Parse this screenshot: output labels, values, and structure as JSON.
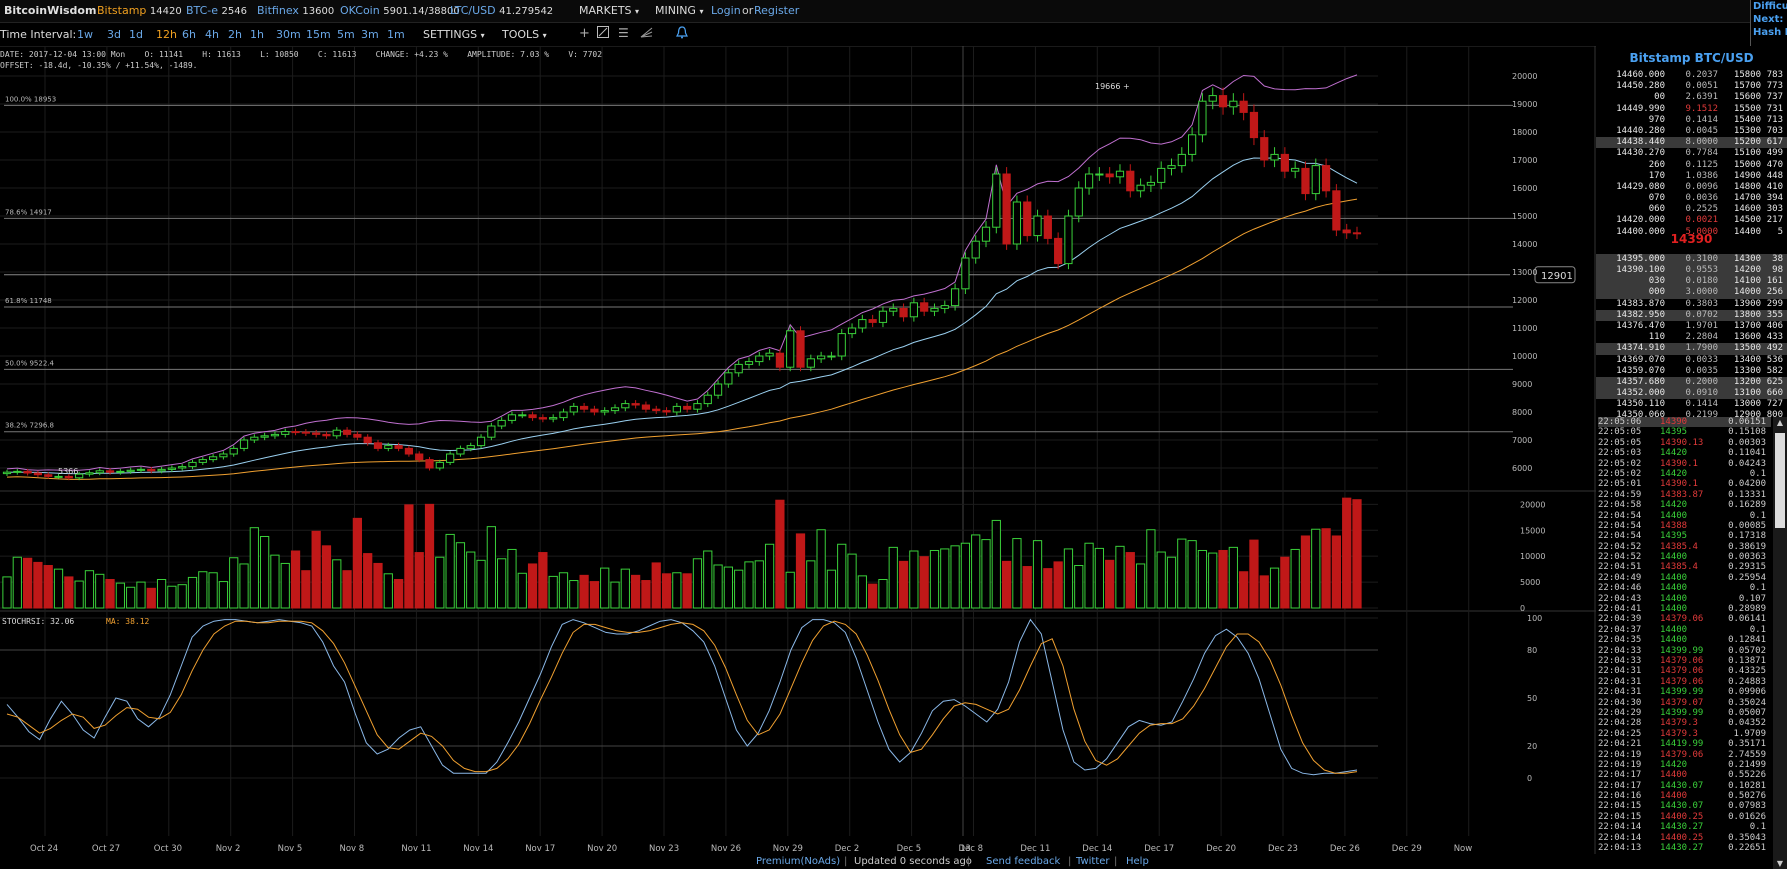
{
  "topbar": {
    "brand": "BitcoinWisdom",
    "exchanges": [
      {
        "name": "Bitstamp",
        "price": "14420",
        "active": true
      },
      {
        "name": "BTC-e",
        "price": "2546"
      },
      {
        "name": "Bitfinex",
        "price": "13600"
      },
      {
        "name": "OKCoin",
        "price": "5901.14/38800"
      },
      {
        "name": "LTC/USD",
        "price": "41.279542"
      }
    ],
    "markets_label": "MARKETS",
    "mining_label": "MINING",
    "login_label": "Login",
    "or_label": "or",
    "register_label": "Register",
    "side_info": [
      "Difficu",
      "Next:",
      "Hash R"
    ]
  },
  "toolbar": {
    "time_interval_label": "Time Interval:",
    "intervals": [
      "1w",
      "3d",
      "1d",
      "12h",
      "6h",
      "4h",
      "2h",
      "1h",
      "30m",
      "15m",
      "5m",
      "3m",
      "1m"
    ],
    "selected_interval": "12h",
    "settings_label": "SETTINGS",
    "tools_label": "TOOLS",
    "tool_icons": [
      "crosshair-icon",
      "line-draw-icon",
      "fib-icon",
      "fan-icon",
      "alert-bell-icon"
    ]
  },
  "ohlc": {
    "line1": "DATE: 2017-12-04 13:00 Mon    O: 11141    H: 11613    L: 10850    C: 11613    CHANGE: +4.23 %    AMPLITUDE: 7.03 %    V: 7702",
    "line2": "OFFSET: -18.4d, -10.35% / +11.54%, -1489."
  },
  "chart_data": [
    {
      "type": "candlestick",
      "pair": "BTC/USD",
      "y_axis": {
        "min": 5000,
        "max": 20500,
        "ticks": [
          6000,
          7000,
          8000,
          9000,
          10000,
          11000,
          12000,
          13000,
          14000,
          15000,
          16000,
          17000,
          18000,
          19000,
          20000
        ]
      },
      "x_labels": [
        "Oct 24",
        "Oct 27",
        "Oct 30",
        "Nov 2",
        "Nov 5",
        "Nov 8",
        "Nov 11",
        "Nov 14",
        "Nov 17",
        "Nov 20",
        "Nov 23",
        "Nov 26",
        "Nov 29",
        "Dec 2",
        "Dec 5",
        "Dec 8",
        "Dec 11",
        "Dec 14",
        "Dec 17",
        "Dec 20",
        "Dec 23",
        "Dec 26",
        "Dec 29",
        "Now"
      ],
      "crosshair_date_label": "13",
      "crosshair_price_label": "12901",
      "high_marker": "19666",
      "low_marker": "5366",
      "fib_levels": [
        {
          "label": "100.0% 18953",
          "value": 18953
        },
        {
          "label": "78.6% 14917",
          "value": 14917
        },
        {
          "label": "61.8% 11748",
          "value": 11748
        },
        {
          "label": "50.0% 9522.4",
          "value": 9522.4
        },
        {
          "label": "38.2% 7296.8",
          "value": 7296.8
        }
      ],
      "crosshair_value": 12901,
      "closes": [
        5850,
        5880,
        5820,
        5760,
        5700,
        5700,
        5650,
        5780,
        5830,
        5900,
        5850,
        5880,
        5920,
        5950,
        5900,
        5950,
        6000,
        6050,
        6200,
        6300,
        6400,
        6500,
        6700,
        7000,
        7100,
        7150,
        7200,
        7300,
        7280,
        7250,
        7200,
        7150,
        7350,
        7200,
        7100,
        6900,
        6700,
        6800,
        6700,
        6500,
        6300,
        6000,
        6200,
        6500,
        6700,
        6800,
        7100,
        7500,
        7700,
        7900,
        7900,
        7800,
        7750,
        7800,
        8000,
        8200,
        8100,
        8000,
        8050,
        8150,
        8300,
        8250,
        8100,
        8050,
        8000,
        8200,
        8100,
        8300,
        8600,
        9000,
        9400,
        9700,
        9800,
        10000,
        10100,
        9600,
        10900,
        9600,
        9900,
        10000,
        10000,
        10800,
        11000,
        11300,
        11200,
        11600,
        11700,
        11400,
        11900,
        11600,
        11700,
        11800,
        12400,
        13500,
        14100,
        14600,
        16500,
        14000,
        15500,
        14300,
        15000,
        14200,
        13300,
        15000,
        16000,
        16500,
        16500,
        16400,
        16600,
        15900,
        16100,
        16200,
        16700,
        16800,
        17200,
        17900,
        19100,
        19300,
        18900,
        19100,
        18700,
        17800,
        17000,
        17200,
        16600,
        16700,
        15800,
        16800,
        15900,
        14500,
        14400,
        14390
      ],
      "volume_axis": {
        "max": 22000,
        "ticks": [
          0,
          5000,
          10000,
          15000,
          20000
        ]
      },
      "volumes": [
        6000,
        9800,
        9600,
        8800,
        8200,
        7500,
        6000,
        5200,
        7200,
        6500,
        5500,
        4800,
        4000,
        5000,
        3800,
        5500,
        4200,
        4500,
        5900,
        7000,
        6800,
        5100,
        9700,
        8500,
        15500,
        13800,
        10200,
        8600,
        11000,
        7200,
        14800,
        12000,
        9300,
        7200,
        17300,
        10500,
        8600,
        6600,
        5500,
        19900,
        10700,
        20000,
        9800,
        14200,
        12600,
        10800,
        9200,
        15700,
        9500,
        11300,
        6700,
        8500,
        10700,
        6100,
        6800,
        5300,
        6300,
        5100,
        7700,
        5000,
        7500,
        6300,
        5300,
        8700,
        6600,
        6800,
        6600,
        9500,
        11000,
        8300,
        7900,
        7300,
        8900,
        9100,
        12300,
        20800,
        6900,
        14300,
        9100,
        15100,
        7300,
        12300,
        10400,
        6200,
        4600,
        5500,
        11700,
        9000,
        11000,
        9900,
        11100,
        11400,
        12000,
        12500,
        14100,
        13200,
        16900,
        9000,
        13400,
        8000,
        13000,
        7600,
        8900,
        11400,
        8200,
        12500,
        11500,
        9200,
        11900,
        10700,
        8500,
        15100,
        10800,
        9800,
        13300,
        13000,
        11100,
        10600,
        11100,
        11700,
        7000,
        13100,
        6200,
        7700,
        9800,
        11300,
        13900,
        15200,
        15300,
        13900,
        21200,
        20900
      ],
      "stochrsi": {
        "label": "STOCHRSI: 32.06",
        "ma_label": "MA: 38.12",
        "ticks": [
          0,
          20,
          50,
          80,
          100
        ],
        "k": [
          46,
          38,
          29,
          24,
          37,
          48,
          40,
          30,
          25,
          38,
          50,
          48,
          37,
          32,
          38,
          52,
          70,
          88,
          95,
          98,
          99,
          99,
          98,
          97,
          98,
          99,
          98,
          97,
          95,
          85,
          70,
          60,
          40,
          22,
          15,
          18,
          25,
          30,
          32,
          20,
          8,
          3,
          3,
          3,
          3,
          10,
          22,
          35,
          50,
          65,
          82,
          96,
          99,
          97,
          94,
          91,
          90,
          90,
          92,
          95,
          98,
          99,
          97,
          92,
          85,
          70,
          50,
          30,
          20,
          28,
          42,
          60,
          80,
          94,
          99,
          99,
          97,
          91,
          75,
          55,
          35,
          18,
          10,
          16,
          28,
          42,
          48,
          49,
          45,
          40,
          35,
          43,
          60,
          85,
          99,
          90,
          60,
          30,
          10,
          5,
          6,
          12,
          22,
          32,
          36,
          34,
          33,
          35,
          48,
          62,
          78,
          89,
          93,
          88,
          78,
          62,
          40,
          18,
          6,
          3,
          2,
          3,
          3,
          4,
          5
        ],
        "d": [
          40,
          38,
          33,
          28,
          31,
          36,
          40,
          38,
          31,
          33,
          39,
          44,
          43,
          38,
          37,
          41,
          52,
          67,
          80,
          90,
          95,
          98,
          98,
          97,
          97,
          98,
          98,
          98,
          97,
          92,
          84,
          72,
          57,
          42,
          27,
          19,
          18,
          23,
          28,
          26,
          20,
          11,
          6,
          4,
          4,
          6,
          12,
          21,
          34,
          49,
          63,
          78,
          91,
          96,
          96,
          94,
          92,
          91,
          91,
          92,
          94,
          96,
          97,
          96,
          92,
          83,
          69,
          52,
          36,
          27,
          30,
          40,
          56,
          72,
          86,
          95,
          98,
          96,
          90,
          77,
          61,
          43,
          27,
          16,
          18,
          27,
          37,
          45,
          47,
          46,
          43,
          40,
          43,
          55,
          70,
          84,
          87,
          70,
          43,
          23,
          11,
          8,
          12,
          20,
          28,
          33,
          34,
          34,
          37,
          45,
          56,
          69,
          82,
          90,
          90,
          85,
          74,
          58,
          39,
          22,
          11,
          5,
          3,
          3,
          4
        ]
      }
    }
  ],
  "orderbook": {
    "title": "Bitstamp BTC/USD",
    "asks": [
      [
        "14460.000",
        "0.2037",
        "15800",
        "783"
      ],
      [
        "14450.280",
        "0.0051",
        "15700",
        "773"
      ],
      [
        "00",
        "2.6391",
        "15600",
        "737"
      ],
      [
        "14449.990",
        "9.1512",
        "15500",
        "731"
      ],
      [
        "970",
        "0.1414",
        "15400",
        "713"
      ],
      [
        "14440.280",
        "0.0045",
        "15300",
        "703"
      ],
      [
        "14438.440",
        "8.0000",
        "15200",
        "617"
      ],
      [
        "14430.270",
        "0.7784",
        "15100",
        "499"
      ],
      [
        "260",
        "0.1125",
        "15000",
        "470"
      ],
      [
        "170",
        "1.0386",
        "14900",
        "448"
      ],
      [
        "14429.080",
        "0.0096",
        "14800",
        "410"
      ],
      [
        "070",
        "0.0036",
        "14700",
        "394"
      ],
      [
        "060",
        "0.2525",
        "14600",
        "303"
      ],
      [
        "14420.000",
        "0.0021",
        "14500",
        "217"
      ],
      [
        "14400.000",
        "5.0000",
        "14400",
        "5"
      ]
    ],
    "last_price": "14390",
    "bids": [
      [
        "14395.000",
        "0.3100",
        "14300",
        "38"
      ],
      [
        "14390.100",
        "0.9553",
        "14200",
        "98"
      ],
      [
        "030",
        "0.0180",
        "14100",
        "161"
      ],
      [
        "000",
        "3.0000",
        "14000",
        "256"
      ],
      [
        "14383.870",
        "0.3803",
        "13900",
        "299"
      ],
      [
        "14382.950",
        "0.0702",
        "13800",
        "355"
      ],
      [
        "14376.470",
        "1.9701",
        "13700",
        "406"
      ],
      [
        "110",
        "2.2804",
        "13600",
        "433"
      ],
      [
        "14374.910",
        "1.7900",
        "13500",
        "492"
      ],
      [
        "14369.070",
        "0.0033",
        "13400",
        "536"
      ],
      [
        "14359.070",
        "0.0035",
        "13300",
        "582"
      ],
      [
        "14357.680",
        "0.2000",
        "13200",
        "625"
      ],
      [
        "14352.000",
        "0.0910",
        "13100",
        "660"
      ],
      [
        "14350.110",
        "0.1414",
        "13000",
        "727"
      ],
      [
        "14350.060",
        "0.2199",
        "12900",
        "800"
      ]
    ]
  },
  "trades": [
    [
      "22:05:06",
      "14390",
      "0.06151",
      "dn"
    ],
    [
      "22:05:05",
      "14395",
      "0.15108",
      "up"
    ],
    [
      "22:05:05",
      "14390.13",
      "0.00303",
      "dn"
    ],
    [
      "22:05:03",
      "14420",
      "0.11041",
      "up"
    ],
    [
      "22:05:02",
      "14390.1",
      "0.04243",
      "dn"
    ],
    [
      "22:05:02",
      "14420",
      "0.1",
      "up"
    ],
    [
      "22:05:01",
      "14390.1",
      "0.04200",
      "dn"
    ],
    [
      "22:04:59",
      "14383.87",
      "0.13331",
      "dn"
    ],
    [
      "22:04:58",
      "14420",
      "0.16289",
      "up"
    ],
    [
      "22:04:54",
      "14400",
      "0.1",
      "up"
    ],
    [
      "22:04:54",
      "14388",
      "0.00085",
      "dn"
    ],
    [
      "22:04:54",
      "14395",
      "0.17318",
      "up"
    ],
    [
      "22:04:52",
      "14385.4",
      "0.38619",
      "dn"
    ],
    [
      "22:04:52",
      "14400",
      "0.00363",
      "up"
    ],
    [
      "22:04:51",
      "14385.4",
      "0.29315",
      "dn"
    ],
    [
      "22:04:49",
      "14400",
      "0.25954",
      "up"
    ],
    [
      "22:04:46",
      "14400",
      "0.1",
      "up"
    ],
    [
      "22:04:43",
      "14400",
      "0.107",
      "up"
    ],
    [
      "22:04:41",
      "14400",
      "0.28989",
      "up"
    ],
    [
      "22:04:39",
      "14379.06",
      "0.06141",
      "dn"
    ],
    [
      "22:04:37",
      "14400",
      "0.1",
      "up"
    ],
    [
      "22:04:35",
      "14400",
      "0.12841",
      "up"
    ],
    [
      "22:04:33",
      "14399.99",
      "0.05702",
      "up"
    ],
    [
      "22:04:33",
      "14379.06",
      "0.13871",
      "dn"
    ],
    [
      "22:04:31",
      "14379.06",
      "0.43325",
      "dn"
    ],
    [
      "22:04:31",
      "14379.06",
      "0.24883",
      "dn"
    ],
    [
      "22:04:31",
      "14399.99",
      "0.09906",
      "up"
    ],
    [
      "22:04:30",
      "14379.07",
      "0.35024",
      "dn"
    ],
    [
      "22:04:29",
      "14399.99",
      "0.05007",
      "up"
    ],
    [
      "22:04:28",
      "14379.3",
      "0.04352",
      "dn"
    ],
    [
      "22:04:25",
      "14379.3",
      "1.9709",
      "dn"
    ],
    [
      "22:04:21",
      "14419.99",
      "0.35171",
      "up"
    ],
    [
      "22:04:19",
      "14379.06",
      "2.74559",
      "dn"
    ],
    [
      "22:04:19",
      "14420",
      "0.21499",
      "up"
    ],
    [
      "22:04:17",
      "14400",
      "0.55226",
      "dn"
    ],
    [
      "22:04:17",
      "14430.07",
      "0.10281",
      "up"
    ],
    [
      "22:04:16",
      "14400",
      "0.50276",
      "dn"
    ],
    [
      "22:04:15",
      "14430.07",
      "0.07983",
      "up"
    ],
    [
      "22:04:15",
      "14400.25",
      "0.01626",
      "dn"
    ],
    [
      "22:04:14",
      "14430.27",
      "0.1",
      "up"
    ],
    [
      "22:04:14",
      "14400.25",
      "0.35043",
      "dn"
    ],
    [
      "22:04:13",
      "14430.27",
      "0.22651",
      "up"
    ]
  ],
  "footer": {
    "premium": "Premium(NoAds)",
    "sep": "|",
    "updated": "Updated 0 seconds ago",
    "feedback": "Send feedback",
    "twitter": "Twitter",
    "help": "Help"
  },
  "colors": {
    "up": "#3ad03a",
    "down": "#c01818",
    "ema_short": "#9ad0f0",
    "ema_long": "#f0a030",
    "bollinger_upper": "#c070d0",
    "grid": "#1c1c1c",
    "fib": "#777777",
    "stoch_k": "#8ab8e8",
    "stoch_d": "#f0a030"
  }
}
